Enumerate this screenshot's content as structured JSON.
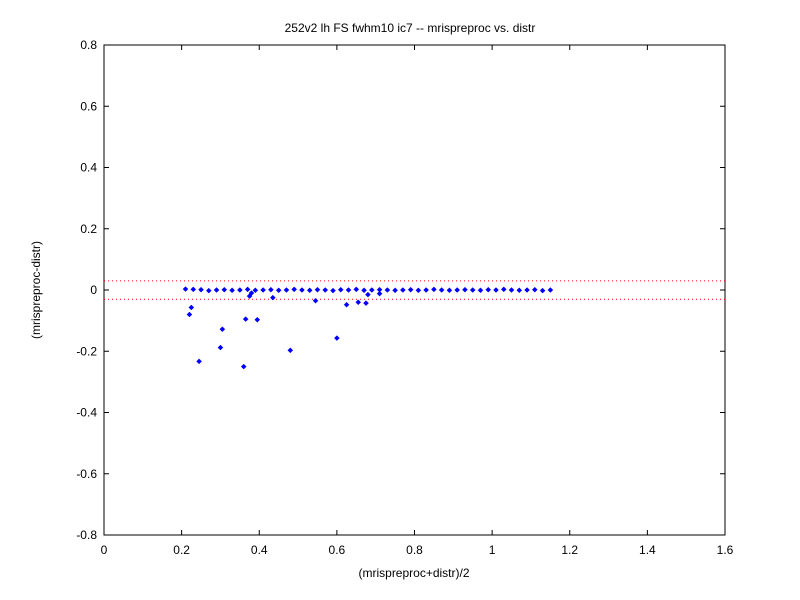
{
  "chart_data": {
    "type": "scatter",
    "title": "252v2 lh FS fwhm10 ic7 -- mrispreproc vs. distr",
    "xlabel": "(mrispreproc+distr)/2",
    "ylabel": "(mrispreproc-distr)",
    "xlim": [
      0,
      1.6
    ],
    "ylim": [
      -0.8,
      0.8
    ],
    "xticks": [
      0,
      0.2,
      0.4,
      0.6,
      0.8,
      1,
      1.2,
      1.4,
      1.6
    ],
    "xtick_labels": [
      "0",
      "0.2",
      "0.4",
      "0.6",
      "0.8",
      "1",
      "1.2",
      "1.4",
      "1.6"
    ],
    "yticks": [
      -0.8,
      -0.6,
      -0.4,
      -0.2,
      0,
      0.2,
      0.4,
      0.6,
      0.8
    ],
    "ytick_labels": [
      "-0.8",
      "-0.6",
      "-0.4",
      "-0.2",
      "0",
      "0.2",
      "0.4",
      "0.6",
      "0.8"
    ],
    "grid": false,
    "reference_lines": [
      {
        "y": 0.03,
        "style": "dotted",
        "color": "#ff0000"
      },
      {
        "y": -0.03,
        "style": "dotted",
        "color": "#ff0000"
      }
    ],
    "series": [
      {
        "color": "#0000ff",
        "marker": "diamond",
        "x": [
          0.21,
          0.23,
          0.25,
          0.27,
          0.29,
          0.31,
          0.33,
          0.35,
          0.37,
          0.39,
          0.41,
          0.43,
          0.45,
          0.47,
          0.49,
          0.51,
          0.53,
          0.55,
          0.57,
          0.59,
          0.61,
          0.63,
          0.65,
          0.67,
          0.69,
          0.71,
          0.73,
          0.75,
          0.77,
          0.79,
          0.81,
          0.83,
          0.85,
          0.87,
          0.89,
          0.91,
          0.93,
          0.95,
          0.97,
          0.99,
          1.01,
          1.03,
          1.05,
          1.07,
          1.09,
          1.11,
          1.13,
          1.15,
          0.22,
          0.225,
          0.245,
          0.305,
          0.3,
          0.365,
          0.36,
          0.395,
          0.375,
          0.38,
          0.435,
          0.48,
          0.545,
          0.6,
          0.625,
          0.655,
          0.675,
          0.68,
          0.71
        ],
        "y": [
          0.003,
          0.002,
          0.001,
          -0.002,
          0.0,
          0.001,
          -0.001,
          0.0,
          0.002,
          -0.001,
          0.0,
          0.001,
          -0.001,
          0.0,
          0.002,
          0.0,
          -0.001,
          0.001,
          0.0,
          -0.002,
          0.001,
          0.0,
          0.002,
          -0.001,
          0.0,
          0.001,
          0.0,
          -0.001,
          0.0,
          0.001,
          -0.001,
          0.0,
          0.002,
          0.0,
          -0.001,
          0.0,
          0.001,
          0.0,
          -0.001,
          0.001,
          0.0,
          0.002,
          0.0,
          -0.001,
          0.0,
          0.001,
          -0.002,
          0.0,
          -0.08,
          -0.057,
          -0.233,
          -0.128,
          -0.188,
          -0.095,
          -0.25,
          -0.097,
          -0.02,
          -0.01,
          -0.025,
          -0.197,
          -0.035,
          -0.157,
          -0.048,
          -0.04,
          -0.043,
          -0.015,
          -0.012
        ]
      }
    ]
  }
}
